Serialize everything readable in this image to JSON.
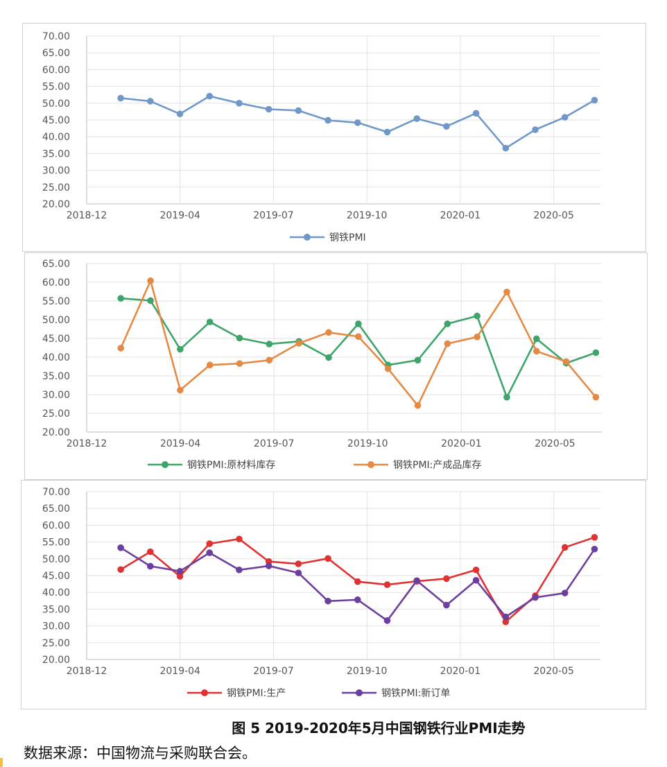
{
  "chart_data": [
    {
      "type": "line",
      "ylim": [
        20,
        70
      ],
      "yticks": [
        "70.00",
        "65.00",
        "60.00",
        "55.00",
        "50.00",
        "45.00",
        "40.00",
        "35.00",
        "30.00",
        "25.00",
        "20.00"
      ],
      "xticks": [
        "2018-12",
        "2019-04",
        "2019-07",
        "2019-10",
        "2020-01",
        "2020-05"
      ],
      "series": [
        {
          "name": "钢铁PMI",
          "color": "#6f98c9",
          "values": [
            51.5,
            50.6,
            46.8,
            52.1,
            50.0,
            48.2,
            47.8,
            44.9,
            44.2,
            41.4,
            45.4,
            43.1,
            47.0,
            36.6,
            42.1,
            45.8,
            50.9
          ]
        }
      ]
    },
    {
      "type": "line",
      "ylim": [
        20,
        65
      ],
      "yticks": [
        "65.00",
        "60.00",
        "55.00",
        "50.00",
        "45.00",
        "40.00",
        "35.00",
        "30.00",
        "25.00",
        "20.00"
      ],
      "xticks": [
        "2018-12",
        "2019-04",
        "2019-07",
        "2019-10",
        "2020-01",
        "2020-05"
      ],
      "series": [
        {
          "name": "钢铁PMI:原材料库存",
          "color": "#3fa46a",
          "values": [
            55.7,
            55.1,
            42.1,
            49.4,
            45.1,
            43.5,
            44.2,
            39.9,
            48.9,
            37.9,
            39.2,
            48.9,
            51.0,
            29.3,
            44.9,
            38.4,
            41.2
          ]
        },
        {
          "name": "钢铁PMI:产成品库存",
          "color": "#e58a45",
          "values": [
            42.4,
            60.4,
            31.2,
            37.9,
            38.3,
            39.2,
            43.7,
            46.6,
            45.5,
            36.9,
            27.1,
            43.6,
            45.4,
            57.4,
            41.6,
            38.8,
            29.3
          ]
        }
      ]
    },
    {
      "type": "line",
      "ylim": [
        20,
        70
      ],
      "yticks": [
        "70.00",
        "65.00",
        "60.00",
        "55.00",
        "50.00",
        "45.00",
        "40.00",
        "35.00",
        "30.00",
        "25.00",
        "20.00"
      ],
      "xticks": [
        "2018-12",
        "2019-04",
        "2019-07",
        "2019-10",
        "2020-01",
        "2020-05"
      ],
      "series": [
        {
          "name": "钢铁PMI:生产",
          "color": "#e03232",
          "values": [
            46.8,
            52.1,
            44.8,
            54.5,
            55.9,
            49.2,
            48.5,
            50.1,
            43.2,
            42.3,
            43.3,
            44.1,
            46.7,
            31.2,
            39.0,
            53.4,
            56.4
          ]
        },
        {
          "name": "钢铁PMI:新订单",
          "color": "#6b3f9e",
          "values": [
            53.3,
            47.8,
            46.3,
            51.8,
            46.7,
            47.9,
            45.8,
            37.4,
            37.8,
            31.6,
            43.5,
            36.2,
            43.6,
            32.7,
            38.5,
            39.8,
            52.9
          ]
        }
      ]
    }
  ],
  "caption": "图 5 2019-2020年5月中国钢铁行业PMI走势",
  "source": "数据来源：中国物流与采购联合会。"
}
